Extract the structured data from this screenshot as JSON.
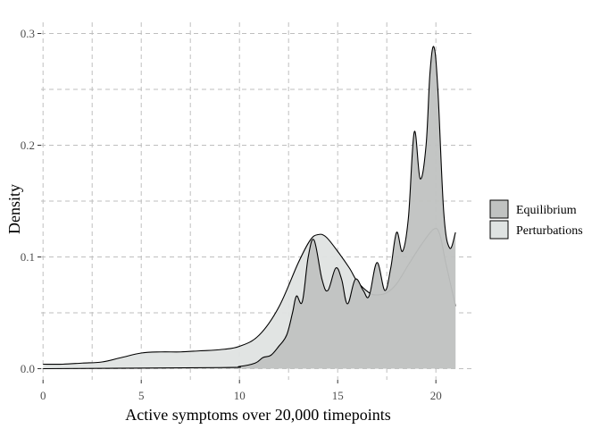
{
  "chart_data": {
    "type": "area",
    "xlabel": "Active symptoms over 20,000 timepoints",
    "ylabel": "Density",
    "xlim": [
      -0.1,
      21.9
    ],
    "ylim": [
      -0.01,
      0.31
    ],
    "x_ticks": [
      0,
      5,
      10,
      15,
      20
    ],
    "y_ticks": [
      0.0,
      0.1,
      0.2,
      0.3
    ],
    "x_tick_labels": [
      "0",
      "5",
      "10",
      "15",
      "20"
    ],
    "y_tick_labels": [
      "0.0",
      "0.1",
      "0.2",
      "0.3"
    ],
    "grid": true,
    "legend_position": "right",
    "series": [
      {
        "name": "Perturbations",
        "fill": "#dfe3e2",
        "points": [
          [
            0,
            0.004
          ],
          [
            1,
            0.004
          ],
          [
            2,
            0.005
          ],
          [
            3,
            0.006
          ],
          [
            4,
            0.01
          ],
          [
            5,
            0.014
          ],
          [
            6,
            0.015
          ],
          [
            7,
            0.015
          ],
          [
            8,
            0.016
          ],
          [
            9,
            0.017
          ],
          [
            10,
            0.02
          ],
          [
            11,
            0.03
          ],
          [
            12,
            0.055
          ],
          [
            13,
            0.095
          ],
          [
            13.6,
            0.115
          ],
          [
            14,
            0.12
          ],
          [
            14.4,
            0.118
          ],
          [
            15,
            0.105
          ],
          [
            15.6,
            0.09
          ],
          [
            16,
            0.078
          ],
          [
            16.6,
            0.068
          ],
          [
            17,
            0.066
          ],
          [
            17.5,
            0.068
          ],
          [
            18,
            0.076
          ],
          [
            18.6,
            0.093
          ],
          [
            19.3,
            0.112
          ],
          [
            19.9,
            0.125
          ],
          [
            20.2,
            0.12
          ],
          [
            20.5,
            0.095
          ],
          [
            21,
            0.056
          ]
        ]
      },
      {
        "name": "Equilibrium",
        "fill": "#c0c2c1",
        "points": [
          [
            0,
            0
          ],
          [
            9,
            0.001
          ],
          [
            10,
            0.002
          ],
          [
            10.8,
            0.005
          ],
          [
            11.2,
            0.01
          ],
          [
            11.6,
            0.012
          ],
          [
            12,
            0.02
          ],
          [
            12.4,
            0.03
          ],
          [
            12.7,
            0.05
          ],
          [
            12.9,
            0.065
          ],
          [
            13.2,
            0.06
          ],
          [
            13.5,
            0.1
          ],
          [
            13.8,
            0.115
          ],
          [
            14.2,
            0.08
          ],
          [
            14.5,
            0.07
          ],
          [
            14.9,
            0.09
          ],
          [
            15.2,
            0.08
          ],
          [
            15.5,
            0.058
          ],
          [
            15.9,
            0.08
          ],
          [
            16.3,
            0.07
          ],
          [
            16.6,
            0.065
          ],
          [
            17,
            0.095
          ],
          [
            17.4,
            0.07
          ],
          [
            17.7,
            0.09
          ],
          [
            18,
            0.122
          ],
          [
            18.3,
            0.105
          ],
          [
            18.6,
            0.135
          ],
          [
            18.9,
            0.212
          ],
          [
            19.2,
            0.17
          ],
          [
            19.5,
            0.2
          ],
          [
            19.7,
            0.265
          ],
          [
            19.9,
            0.288
          ],
          [
            20.1,
            0.25
          ],
          [
            20.4,
            0.14
          ],
          [
            20.7,
            0.108
          ],
          [
            21,
            0.122
          ]
        ]
      }
    ]
  },
  "legend_order": [
    "Equilibrium",
    "Perturbations"
  ]
}
